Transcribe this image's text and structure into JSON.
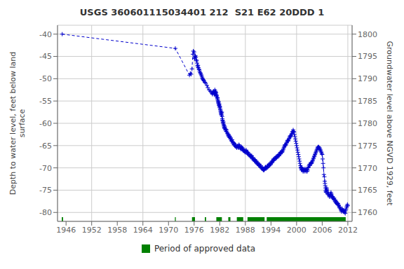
{
  "chart_data": {
    "type": "line",
    "title": "USGS 360601115034401 212  S21 E62 20DDD 1",
    "ylabel": "Depth to water level, feet below land\nsurface",
    "y2label": "Groundwater level above NGVD 1929, feet",
    "xlim": [
      1944,
      2013
    ],
    "xticks": [
      1946,
      1952,
      1958,
      1964,
      1970,
      1976,
      1982,
      1988,
      1994,
      2000,
      2006,
      2012
    ],
    "ylim": [
      -82,
      -38
    ],
    "yticks": [
      -80,
      -75,
      -70,
      -65,
      -60,
      -55,
      -50,
      -45,
      -40
    ],
    "y2lim": [
      1758,
      1802
    ],
    "y2ticks": [
      1800,
      1795,
      1790,
      1785,
      1780,
      1775,
      1770,
      1765,
      1760
    ],
    "grid": true,
    "legend": "bottom",
    "x": [
      1945.1,
      1971.6,
      1974.9,
      1975.1,
      1975.3,
      1975.5,
      1975.7,
      1975.8,
      1976.0,
      1976.1,
      1976.15,
      1976.2,
      1976.3,
      1976.4,
      1976.5,
      1976.6,
      1976.7,
      1976.8,
      1976.85,
      1976.9,
      1977.0,
      1977.1,
      1977.2,
      1977.3,
      1977.4,
      1977.5,
      1977.6,
      1977.7,
      1977.8,
      1977.9,
      1978.0,
      1978.1,
      1978.2,
      1978.3,
      1978.5,
      1978.7,
      1979.0,
      1979.2,
      1979.5,
      1979.8,
      1980.0,
      1980.2,
      1980.3,
      1980.4,
      1980.5,
      1980.6,
      1980.7,
      1980.8,
      1980.85,
      1980.9,
      1981.0,
      1981.05,
      1981.1,
      1981.15,
      1981.2,
      1981.25,
      1981.3,
      1981.4,
      1981.45,
      1981.5,
      1981.55,
      1981.6,
      1981.65,
      1981.7,
      1981.75,
      1981.8,
      1981.85,
      1981.9,
      1981.95,
      1982.0,
      1982.05,
      1982.1,
      1982.15,
      1982.2,
      1982.25,
      1982.3,
      1982.35,
      1982.4,
      1982.45,
      1982.5,
      1982.55,
      1982.6,
      1982.65,
      1982.7,
      1982.75,
      1982.8,
      1982.85,
      1982.9,
      1982.95,
      1983.0,
      1983.05,
      1983.1,
      1983.15,
      1983.2,
      1983.3,
      1983.4,
      1983.5,
      1983.6,
      1983.7,
      1983.8,
      1983.9,
      1984.0,
      1984.1,
      1984.15,
      1984.2,
      1984.3,
      1984.4,
      1984.5,
      1984.6,
      1984.7,
      1984.8,
      1984.9,
      1985.0,
      1985.1,
      1985.2,
      1985.3,
      1985.4,
      1985.5,
      1985.6,
      1985.7,
      1985.8,
      1985.9,
      1986.0,
      1986.1,
      1986.2,
      1986.3,
      1986.4,
      1986.5,
      1986.6,
      1986.7,
      1986.8,
      1986.9,
      1987.0,
      1987.1,
      1987.2,
      1987.3,
      1987.4,
      1987.5,
      1987.6,
      1987.7,
      1987.8,
      1987.9,
      1988.0,
      1988.1,
      1988.2,
      1988.3,
      1988.4,
      1988.5,
      1988.6,
      1988.7,
      1988.8,
      1988.9,
      1989.0,
      1989.1,
      1989.2,
      1989.3,
      1989.4,
      1989.5,
      1989.6,
      1989.7,
      1989.8,
      1989.9,
      1990.0,
      1990.1,
      1990.2,
      1990.3,
      1990.4,
      1990.5,
      1990.6,
      1990.7,
      1990.8,
      1990.9,
      1991.0,
      1991.1,
      1991.2,
      1991.3,
      1991.4,
      1991.5,
      1991.6,
      1991.7,
      1991.8,
      1991.9,
      1992.0,
      1992.1,
      1992.2,
      1992.3,
      1992.4,
      1992.5,
      1992.6,
      1992.7,
      1992.8,
      1992.9,
      1993.0,
      1993.1,
      1993.2,
      1993.3,
      1993.4,
      1993.5,
      1993.6,
      1993.7,
      1993.8,
      1993.9,
      1994.0,
      1994.1,
      1994.2,
      1994.3,
      1994.4,
      1994.5,
      1994.6,
      1994.7,
      1994.8,
      1994.9,
      1995.0,
      1995.1,
      1995.2,
      1995.3,
      1995.4,
      1995.5,
      1995.6,
      1995.7,
      1995.8,
      1995.9,
      1996.0,
      1996.1,
      1996.2,
      1996.3,
      1996.4,
      1996.5,
      1996.6,
      1996.7,
      1996.8,
      1996.9,
      1997.0,
      1997.1,
      1997.2,
      1997.3,
      1997.4,
      1997.5,
      1997.6,
      1997.7,
      1997.8,
      1997.9,
      1998.0,
      1998.1,
      1998.2,
      1998.3,
      1998.4,
      1998.5,
      1998.6,
      1998.7,
      1998.8,
      1998.9,
      1999.0,
      1999.1,
      1999.2,
      1999.3,
      1999.4,
      1999.5,
      1999.6,
      1999.7,
      1999.8,
      1999.9,
      2000.0,
      2000.1,
      2000.2,
      2000.3,
      2000.4,
      2000.5,
      2000.6,
      2000.7,
      2000.8,
      2000.9,
      2001.0,
      2001.05,
      2001.1,
      2001.15,
      2001.2,
      2001.3,
      2001.4,
      2001.5,
      2001.6,
      2001.7,
      2001.8,
      2001.9,
      2002.0,
      2002.1,
      2002.2,
      2002.3,
      2002.4,
      2002.5,
      2002.6,
      2002.7,
      2002.8,
      2002.9,
      2003.0,
      2003.1,
      2003.2,
      2003.3,
      2003.4,
      2003.5,
      2003.6,
      2003.7,
      2003.8,
      2003.9,
      2004.0,
      2004.1,
      2004.2,
      2004.3,
      2004.4,
      2004.5,
      2004.6,
      2004.7,
      2004.8,
      2004.9,
      2005.0,
      2005.1,
      2005.2,
      2005.3,
      2005.4,
      2005.5,
      2005.6,
      2005.7,
      2005.8,
      2005.9,
      2006.0,
      2006.1,
      2006.2,
      2006.3,
      2006.4,
      2006.5,
      2006.6,
      2006.65,
      2006.7,
      2006.75,
      2006.8,
      2006.85,
      2006.9,
      2007.0,
      2007.05,
      2007.1,
      2007.15,
      2007.2,
      2007.3,
      2007.4,
      2007.5,
      2007.6,
      2007.7,
      2007.8,
      2007.9,
      2008.0,
      2008.05,
      2008.1,
      2008.15,
      2008.2,
      2008.3,
      2008.4,
      2008.5,
      2008.6,
      2008.7,
      2008.8,
      2008.9,
      2009.0,
      2009.05,
      2009.1,
      2009.15,
      2009.2,
      2009.3,
      2009.4,
      2009.5,
      2009.6,
      2009.7,
      2009.8,
      2009.9,
      2010.0,
      2010.1,
      2010.2,
      2010.3,
      2010.4,
      2010.5,
      2010.6,
      2010.7,
      2010.8,
      2010.9,
      2011.0,
      2011.1,
      2011.2,
      2011.3,
      2011.4,
      2011.5,
      2011.6,
      2011.7,
      2011.8,
      2011.9,
      2012.0
    ],
    "series": [
      {
        "color": "#0000cc",
        "marker": "plus",
        "line_style": "dashed",
        "values": [
          -40.0,
          -43.2,
          -49.2,
          -48.8,
          -49.0,
          -47.8,
          -44.5,
          -43.8,
          -44.0,
          -45.5,
          -45.3,
          -45.0,
          -44.8,
          -45.2,
          -45.8,
          -46.0,
          -46.5,
          -47.0,
          -47.3,
          -47.0,
          -47.5,
          -47.8,
          -48.0,
          -48.3,
          -48.6,
          -48.8,
          -49.0,
          -49.2,
          -49.5,
          -49.8,
          -50.0,
          -50.2,
          -50.3,
          -50.5,
          -50.8,
          -51.0,
          -51.5,
          -52.0,
          -52.5,
          -52.8,
          -53.0,
          -53.3,
          -53.5,
          -53.0,
          -53.2,
          -52.8,
          -53.5,
          -53.0,
          -52.5,
          -53.3,
          -52.8,
          -53.0,
          -53.5,
          -53.2,
          -53.8,
          -54.0,
          -53.7,
          -54.2,
          -54.5,
          -54.3,
          -54.8,
          -55.0,
          -55.3,
          -55.5,
          -55.2,
          -55.8,
          -56.0,
          -55.7,
          -56.2,
          -56.5,
          -56.3,
          -56.8,
          -57.0,
          -57.3,
          -57.5,
          -57.8,
          -58.0,
          -57.7,
          -58.2,
          -57.5,
          -58.5,
          -59.0,
          -59.3,
          -59.5,
          -59.8,
          -60.0,
          -59.7,
          -60.2,
          -60.5,
          -60.8,
          -60.5,
          -61.0,
          -61.2,
          -60.8,
          -61.5,
          -61.3,
          -61.8,
          -61.5,
          -62.0,
          -62.3,
          -62.5,
          -62.8,
          -62.5,
          -63.0,
          -62.8,
          -63.2,
          -63.0,
          -63.5,
          -63.3,
          -63.8,
          -64.0,
          -63.7,
          -64.2,
          -64.5,
          -64.3,
          -64.8,
          -64.5,
          -65.0,
          -64.8,
          -65.2,
          -65.0,
          -65.3,
          -65.5,
          -65.2,
          -65.0,
          -65.3,
          -65.5,
          -64.8,
          -65.0,
          -65.3,
          -65.5,
          -65.8,
          -65.5,
          -65.3,
          -65.8,
          -65.5,
          -66.0,
          -65.8,
          -66.2,
          -66.0,
          -66.3,
          -66.5,
          -66.2,
          -66.5,
          -66.0,
          -66.3,
          -66.5,
          -66.8,
          -66.5,
          -67.0,
          -66.8,
          -67.2,
          -67.0,
          -67.3,
          -67.5,
          -67.2,
          -67.5,
          -67.3,
          -67.8,
          -68.0,
          -67.7,
          -68.2,
          -68.0,
          -68.3,
          -68.5,
          -68.2,
          -68.5,
          -68.8,
          -68.5,
          -69.0,
          -68.8,
          -69.2,
          -69.0,
          -69.3,
          -69.5,
          -69.2,
          -69.5,
          -69.8,
          -69.5,
          -70.0,
          -69.8,
          -70.2,
          -70.0,
          -70.3,
          -70.5,
          -70.2,
          -70.5,
          -70.3,
          -70.0,
          -69.8,
          -70.2,
          -70.0,
          -69.8,
          -70.0,
          -69.5,
          -69.8,
          -69.5,
          -69.2,
          -69.5,
          -69.3,
          -69.0,
          -69.3,
          -69.0,
          -68.8,
          -68.5,
          -68.8,
          -68.5,
          -68.3,
          -68.0,
          -68.3,
          -68.0,
          -67.8,
          -68.0,
          -67.8,
          -67.5,
          -67.8,
          -67.5,
          -67.3,
          -67.5,
          -67.3,
          -67.0,
          -67.3,
          -67.0,
          -66.8,
          -66.5,
          -66.8,
          -66.5,
          -66.3,
          -66.5,
          -66.3,
          -66.0,
          -65.8,
          -65.5,
          -65.3,
          -65.0,
          -64.8,
          -65.0,
          -64.8,
          -64.5,
          -64.3,
          -64.0,
          -63.8,
          -64.0,
          -63.8,
          -63.5,
          -63.3,
          -63.0,
          -62.8,
          -63.0,
          -62.8,
          -62.5,
          -62.3,
          -62.0,
          -61.8,
          -61.5,
          -61.8,
          -62.0,
          -62.5,
          -63.0,
          -63.5,
          -64.0,
          -64.5,
          -65.0,
          -65.5,
          -66.0,
          -66.5,
          -67.0,
          -67.5,
          -68.0,
          -68.5,
          -69.0,
          -69.5,
          -70.0,
          -69.8,
          -70.2,
          -70.5,
          -70.0,
          -70.3,
          -70.5,
          -70.8,
          -70.5,
          -70.3,
          -70.8,
          -70.5,
          -70.2,
          -70.5,
          -70.8,
          -70.5,
          -70.3,
          -70.8,
          -70.5,
          -70.0,
          -69.8,
          -69.5,
          -69.2,
          -69.5,
          -69.2,
          -69.0,
          -68.8,
          -69.0,
          -68.8,
          -68.5,
          -68.3,
          -68.0,
          -67.8,
          -67.5,
          -67.3,
          -67.0,
          -66.8,
          -66.5,
          -66.3,
          -66.0,
          -65.8,
          -65.5,
          -65.3,
          -65.5,
          -65.3,
          -65.8,
          -65.5,
          -65.8,
          -66.0,
          -66.3,
          -66.5,
          -66.8,
          -67.0,
          -68.0,
          -69.0,
          -70.0,
          -71.5,
          -72.0,
          -73.0,
          -73.5,
          -74.0,
          -74.5,
          -75.0,
          -75.3,
          -75.5,
          -75.0,
          -74.5,
          -74.8,
          -75.2,
          -75.5,
          -75.8,
          -76.0,
          -75.8,
          -76.2,
          -76.5,
          -76.0,
          -76.3,
          -75.8,
          -75.5,
          -75.8,
          -76.0,
          -76.3,
          -76.5,
          -76.8,
          -76.5,
          -76.8,
          -77.0,
          -76.8,
          -77.2,
          -77.5,
          -77.2,
          -77.5,
          -77.8,
          -77.5,
          -77.8,
          -78.0,
          -77.8,
          -78.2,
          -78.0,
          -78.3,
          -78.5,
          -78.8,
          -79.0,
          -78.8,
          -79.2,
          -79.5,
          -79.8,
          -79.5,
          -79.2,
          -79.5,
          -79.8,
          -79.5,
          -79.8,
          -80.0,
          -79.8,
          -80.2,
          -79.5,
          -79.2,
          -78.8,
          -78.5,
          -78.2,
          -78.5
        ]
      },
      {
        "name": "Period of approved data",
        "type": "range",
        "color": "#008000",
        "periods": [
          [
            1945.0,
            1945.3
          ],
          [
            1971.5,
            1971.7
          ],
          [
            1975.5,
            1976.2
          ],
          [
            1978.5,
            1978.8
          ],
          [
            1981.2,
            1982.5
          ],
          [
            1984.0,
            1984.5
          ],
          [
            1986.0,
            1987.5
          ],
          [
            1988.5,
            1992.5
          ],
          [
            1993.0,
            2011.5
          ]
        ]
      }
    ]
  }
}
